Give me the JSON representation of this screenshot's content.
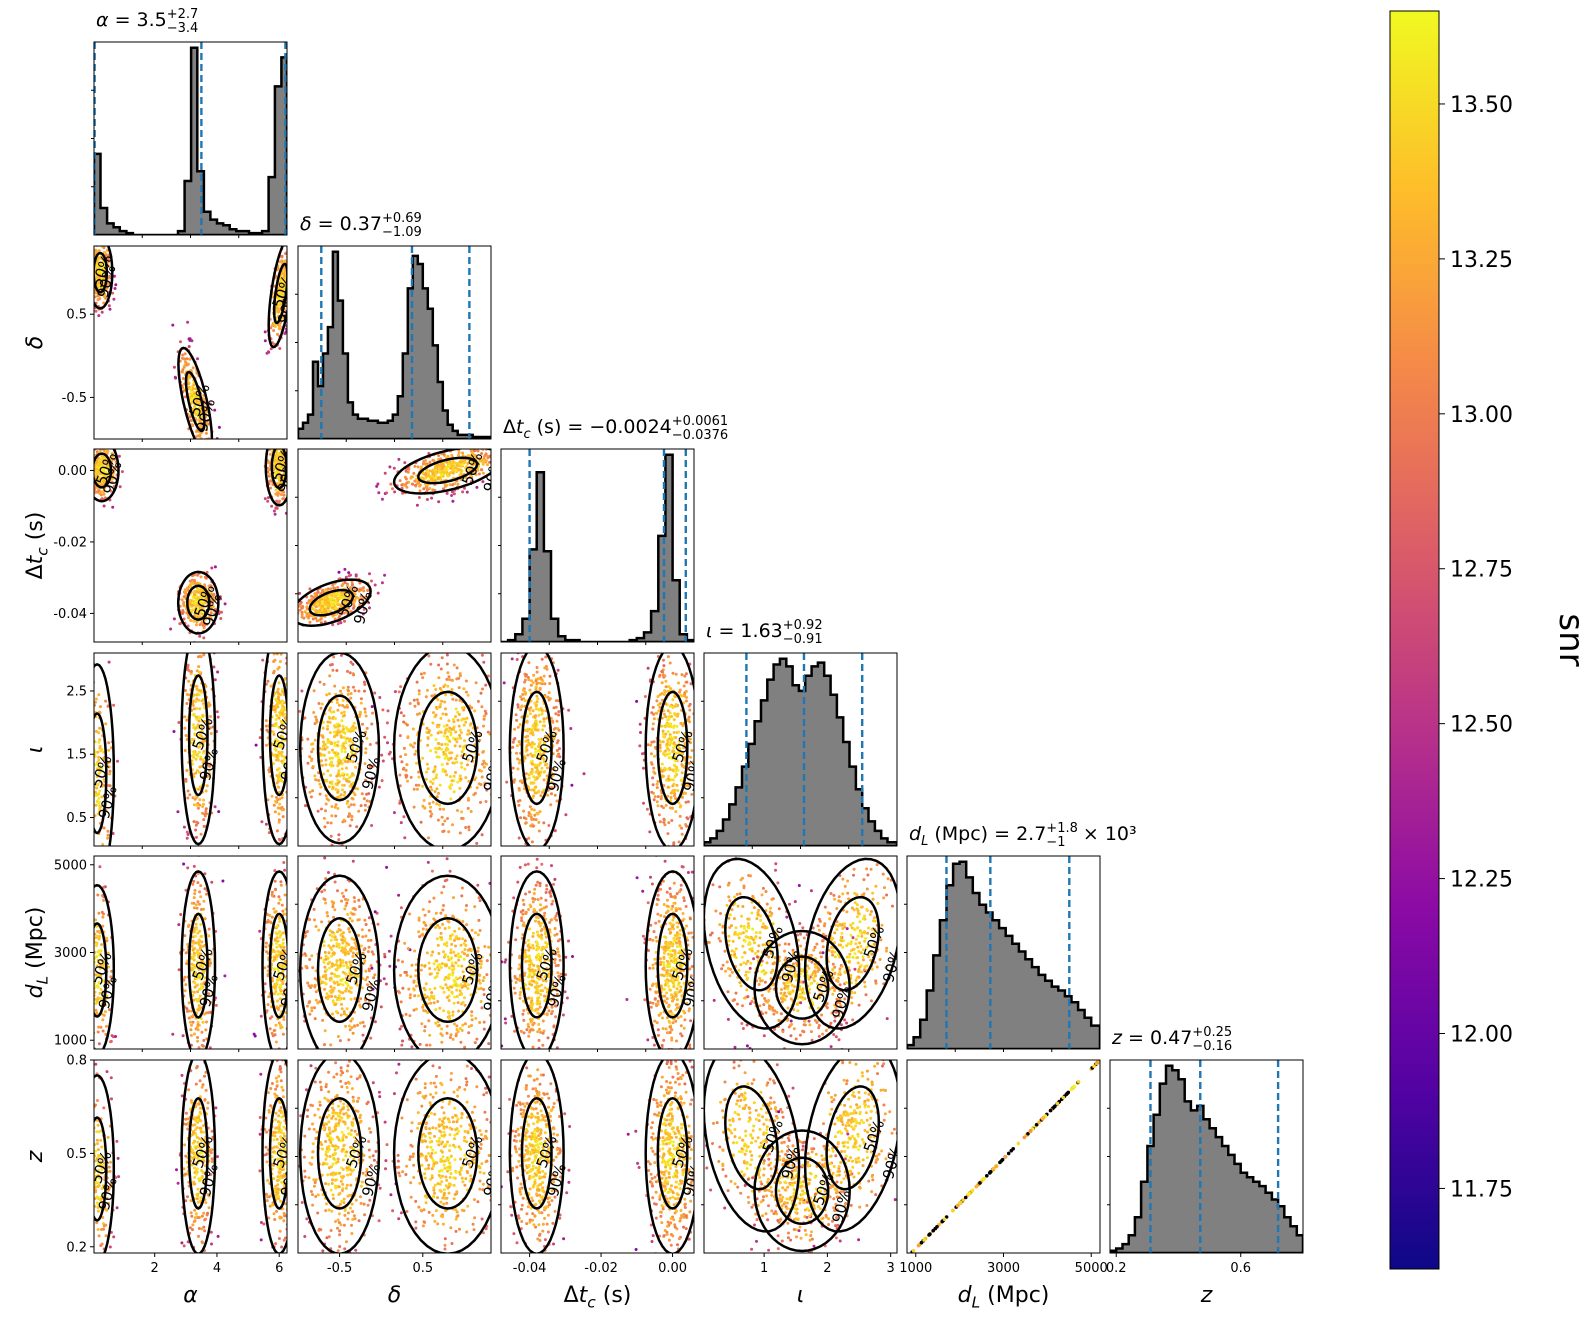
{
  "chart_data": {
    "type": "corner",
    "parameters": [
      {
        "symbol": "α",
        "axis_label": "α",
        "title_name": "α",
        "median": "3.5",
        "plus": "+2.7",
        "minus": "−3.4",
        "multiplier": "",
        "ticks": [
          "2",
          "4",
          "6"
        ],
        "range": [
          0.05,
          6.25
        ],
        "hist_x": [
          0.05,
          0.26,
          0.47,
          0.68,
          0.88,
          1.09,
          1.3,
          1.51,
          1.71,
          1.92,
          2.13,
          2.34,
          2.54,
          2.75,
          2.96,
          3.17,
          3.37,
          3.58,
          3.79,
          4.0,
          4.2,
          4.41,
          4.62,
          4.83,
          5.03,
          5.24,
          5.45,
          5.66,
          5.86,
          6.07,
          6.25
        ],
        "hist_y": [
          0.42,
          0.14,
          0.06,
          0.04,
          0.02,
          0.01,
          0,
          0,
          0,
          0,
          0,
          0,
          0,
          0.02,
          0.28,
          0.97,
          0.33,
          0.12,
          0.08,
          0.06,
          0.05,
          0.03,
          0.02,
          0.02,
          0.01,
          0.01,
          0.02,
          0.3,
          0.77,
          0.92
        ],
        "quantiles": [
          0.07,
          3.5,
          6.2
        ]
      },
      {
        "symbol": "δ",
        "axis_label": "δ",
        "title_name": "δ",
        "median": "0.37",
        "plus": "+0.69",
        "minus": "−1.09",
        "multiplier": "",
        "ticks": [
          "-0.5",
          "0.5"
        ],
        "range": [
          -1.0,
          1.32
        ],
        "hist_x": [
          -1.0,
          -0.94,
          -0.88,
          -0.82,
          -0.76,
          -0.7,
          -0.64,
          -0.58,
          -0.52,
          -0.46,
          -0.4,
          -0.34,
          -0.28,
          -0.22,
          -0.16,
          -0.1,
          -0.04,
          0.02,
          0.08,
          0.14,
          0.2,
          0.26,
          0.32,
          0.38,
          0.44,
          0.5,
          0.56,
          0.62,
          0.68,
          0.74,
          0.8,
          0.86,
          0.92,
          0.98,
          1.04,
          1.1,
          1.16,
          1.22,
          1.32
        ],
        "hist_y": [
          0.05,
          0.08,
          0.12,
          0.38,
          0.26,
          0.42,
          0.55,
          0.92,
          0.68,
          0.42,
          0.18,
          0.12,
          0.1,
          0.1,
          0.09,
          0.09,
          0.08,
          0.08,
          0.09,
          0.12,
          0.21,
          0.42,
          0.74,
          0.9,
          0.86,
          0.74,
          0.64,
          0.46,
          0.28,
          0.14,
          0.07,
          0.04,
          0.02,
          0.02,
          0.02,
          0.01,
          0.01,
          0.01
        ],
        "quantiles": [
          -0.72,
          0.37,
          1.06
        ]
      },
      {
        "symbol": "Δt_c",
        "axis_label": "Δt_c (s)",
        "title_name": "Δt_c (s)",
        "median": "−0.0024",
        "plus": "+0.0061",
        "minus": "−0.0376",
        "multiplier": "",
        "ticks": [
          "-0.04",
          "-0.02",
          "0.00"
        ],
        "range": [
          -0.048,
          0.006
        ],
        "hist_x": [
          -0.048,
          -0.046,
          -0.044,
          -0.042,
          -0.04,
          -0.038,
          -0.036,
          -0.034,
          -0.032,
          -0.03,
          -0.028,
          -0.026,
          -0.024,
          -0.022,
          -0.02,
          -0.018,
          -0.016,
          -0.014,
          -0.012,
          -0.01,
          -0.008,
          -0.006,
          -0.004,
          -0.002,
          0.0,
          0.002,
          0.004,
          0.006
        ],
        "hist_y": [
          0,
          0.01,
          0.04,
          0.12,
          0.48,
          0.88,
          0.47,
          0.12,
          0.03,
          0.01,
          0.01,
          0,
          0,
          0,
          0,
          0,
          0,
          0,
          0.01,
          0.02,
          0.05,
          0.16,
          0.55,
          0.97,
          0.32,
          0.04,
          0.01
        ],
        "quantiles": [
          -0.04,
          -0.0024,
          0.0037
        ]
      },
      {
        "symbol": "ι",
        "axis_label": "ι",
        "title_name": "ι",
        "median": "1.63",
        "plus": "+0.92",
        "minus": "−0.91",
        "multiplier": "",
        "ticks": [
          "0.5",
          "1.5",
          "2.5"
        ],
        "xticks": [
          "1",
          "2",
          "3"
        ],
        "range": [
          0.05,
          3.1
        ],
        "hist_x": [
          0.05,
          0.15,
          0.25,
          0.35,
          0.45,
          0.55,
          0.65,
          0.75,
          0.85,
          0.95,
          1.05,
          1.15,
          1.25,
          1.35,
          1.45,
          1.55,
          1.65,
          1.75,
          1.85,
          1.95,
          2.05,
          2.15,
          2.25,
          2.35,
          2.45,
          2.55,
          2.65,
          2.75,
          2.85,
          2.95,
          3.1
        ],
        "hist_y": [
          0.02,
          0.04,
          0.08,
          0.14,
          0.22,
          0.31,
          0.42,
          0.54,
          0.66,
          0.77,
          0.88,
          0.96,
          0.99,
          0.95,
          0.85,
          0.82,
          0.9,
          0.95,
          0.97,
          0.9,
          0.8,
          0.68,
          0.55,
          0.42,
          0.3,
          0.2,
          0.13,
          0.08,
          0.04,
          0.02
        ],
        "quantiles": [
          0.72,
          1.63,
          2.55
        ]
      },
      {
        "symbol": "d_L",
        "axis_label": "d_L (Mpc)",
        "title_name": "d_L (Mpc)",
        "median": "2.7",
        "plus": "+1.8",
        "minus": "−1",
        "multiplier": "× 10³",
        "ticks": [
          "1000",
          "3000",
          "5000"
        ],
        "range": [
          800,
          5200
        ],
        "hist_x": [
          800,
          950,
          1100,
          1250,
          1400,
          1550,
          1700,
          1850,
          2000,
          2150,
          2300,
          2450,
          2600,
          2750,
          2900,
          3050,
          3200,
          3350,
          3500,
          3650,
          3800,
          3950,
          4100,
          4250,
          4400,
          4550,
          4700,
          4850,
          5000,
          5200
        ],
        "hist_y": [
          0.02,
          0.06,
          0.15,
          0.3,
          0.48,
          0.66,
          0.84,
          0.95,
          0.96,
          0.88,
          0.8,
          0.74,
          0.7,
          0.66,
          0.62,
          0.58,
          0.54,
          0.5,
          0.46,
          0.42,
          0.38,
          0.35,
          0.32,
          0.3,
          0.27,
          0.24,
          0.2,
          0.16,
          0.12
        ],
        "quantiles": [
          1700,
          2700,
          4500
        ]
      },
      {
        "symbol": "z",
        "axis_label": "z",
        "title_name": "z",
        "median": "0.47",
        "plus": "+0.25",
        "minus": "−0.16",
        "multiplier": "",
        "ticks": [
          "0.2",
          "0.5",
          "0.8"
        ],
        "xticks": [
          "0.2",
          "0.6"
        ],
        "range": [
          0.18,
          0.8
        ],
        "hist_x": [
          0.18,
          0.2,
          0.22,
          0.24,
          0.26,
          0.28,
          0.3,
          0.32,
          0.34,
          0.36,
          0.38,
          0.4,
          0.42,
          0.44,
          0.46,
          0.48,
          0.5,
          0.52,
          0.54,
          0.56,
          0.58,
          0.6,
          0.62,
          0.64,
          0.66,
          0.68,
          0.7,
          0.72,
          0.74,
          0.76,
          0.78,
          0.8
        ],
        "hist_y": [
          0.01,
          0.02,
          0.04,
          0.08,
          0.16,
          0.32,
          0.48,
          0.62,
          0.76,
          0.84,
          0.82,
          0.78,
          0.68,
          0.64,
          0.66,
          0.6,
          0.56,
          0.52,
          0.48,
          0.44,
          0.4,
          0.36,
          0.34,
          0.32,
          0.3,
          0.27,
          0.24,
          0.21,
          0.16,
          0.12,
          0.08
        ],
        "quantiles": [
          0.31,
          0.47,
          0.72
        ]
      }
    ],
    "contour_labels": [
      "50%",
      "90%"
    ],
    "colorbar": {
      "label": "snr",
      "range": [
        11.62,
        13.65
      ],
      "ticks": [
        "11.75",
        "12.00",
        "12.25",
        "12.50",
        "12.75",
        "13.00",
        "13.25",
        "13.50"
      ],
      "colormap": [
        "#0d0887",
        "#5302a3",
        "#8b0aa5",
        "#b83289",
        "#db5c68",
        "#f48849",
        "#febd2a",
        "#f0f921"
      ]
    },
    "colors": {
      "quantile_line": "#1f77b4",
      "hist_fill": "#808080",
      "contour": "#000000"
    }
  }
}
